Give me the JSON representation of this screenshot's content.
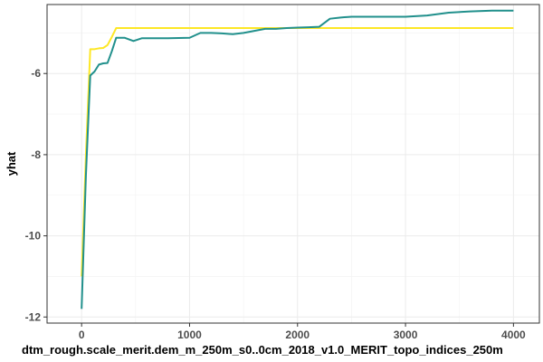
{
  "chart_data": {
    "type": "line",
    "title": "",
    "xlabel": "dtm_rough.scale_merit.dem_m_250m_s0..0cm_2018_v1.0_MERIT_topo_indices_250m",
    "ylabel": "yhat",
    "xlim": [
      -320,
      4240
    ],
    "ylim": [
      -12.15,
      -4.3
    ],
    "x_ticks": [
      0,
      1000,
      2000,
      3000,
      4000
    ],
    "x_tick_labels": [
      "0",
      "1000",
      "2000",
      "3000",
      "4000"
    ],
    "y_ticks": [
      -12,
      -10,
      -8,
      -6
    ],
    "y_tick_labels": [
      "-12",
      "-10",
      "-8",
      "-6"
    ],
    "grid": true,
    "legend": "none",
    "series": [
      {
        "color": "#fde725",
        "x": [
          0,
          40,
          80,
          120,
          160,
          200,
          240,
          280,
          320,
          400,
          800,
          1200,
          1600,
          2000,
          2400,
          2800,
          3200,
          3600,
          4000
        ],
        "y": [
          -11.0,
          -8.0,
          -5.4,
          -5.4,
          -5.38,
          -5.37,
          -5.3,
          -5.1,
          -4.88,
          -4.88,
          -4.88,
          -4.88,
          -4.88,
          -4.88,
          -4.88,
          -4.88,
          -4.88,
          -4.88,
          -4.88
        ]
      },
      {
        "color": "#21908c",
        "x": [
          0,
          40,
          80,
          120,
          160,
          200,
          240,
          280,
          320,
          400,
          480,
          560,
          800,
          1000,
          1100,
          1200,
          1300,
          1400,
          1500,
          1600,
          1700,
          1800,
          1900,
          2000,
          2100,
          2200,
          2300,
          2400,
          2500,
          2600,
          2800,
          3000,
          3200,
          3400,
          3600,
          3800,
          4000
        ],
        "y": [
          -11.8,
          -8.5,
          -6.05,
          -5.95,
          -5.78,
          -5.75,
          -5.74,
          -5.45,
          -5.12,
          -5.12,
          -5.2,
          -5.13,
          -5.13,
          -5.12,
          -5.0,
          -5.0,
          -5.01,
          -5.03,
          -5.0,
          -4.95,
          -4.9,
          -4.9,
          -4.88,
          -4.87,
          -4.86,
          -4.85,
          -4.65,
          -4.62,
          -4.6,
          -4.6,
          -4.6,
          -4.6,
          -4.57,
          -4.5,
          -4.47,
          -4.45,
          -4.45
        ]
      }
    ]
  }
}
